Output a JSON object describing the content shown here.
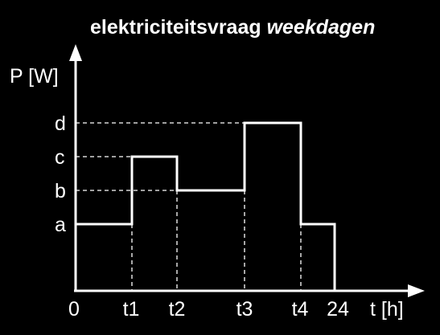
{
  "title": {
    "main": "elektriciteitsvraag ",
    "emphasis": "weekdagen"
  },
  "y_axis_label": "P [W]",
  "x_axis_label": "t [h]",
  "y_levels": [
    "a",
    "b",
    "c",
    "d"
  ],
  "x_ticks": [
    "0",
    "t1",
    "t2",
    "t3",
    "t4",
    "24"
  ],
  "colors": {
    "background": "#000000",
    "foreground": "#ffffff"
  },
  "chart_data": {
    "type": "line",
    "step": true,
    "xlabel": "t [h]",
    "ylabel": "P [W]",
    "x_categories": [
      "0",
      "t1",
      "t2",
      "t3",
      "t4",
      "24"
    ],
    "y_categories": [
      "a",
      "b",
      "c",
      "d"
    ],
    "segments": [
      {
        "from": "0",
        "to": "t1",
        "level": "a"
      },
      {
        "from": "t1",
        "to": "t2",
        "level": "c"
      },
      {
        "from": "t2",
        "to": "t3",
        "level": "b"
      },
      {
        "from": "t3",
        "to": "t4",
        "level": "d"
      },
      {
        "from": "t4",
        "to": "24",
        "level": "a"
      }
    ]
  }
}
